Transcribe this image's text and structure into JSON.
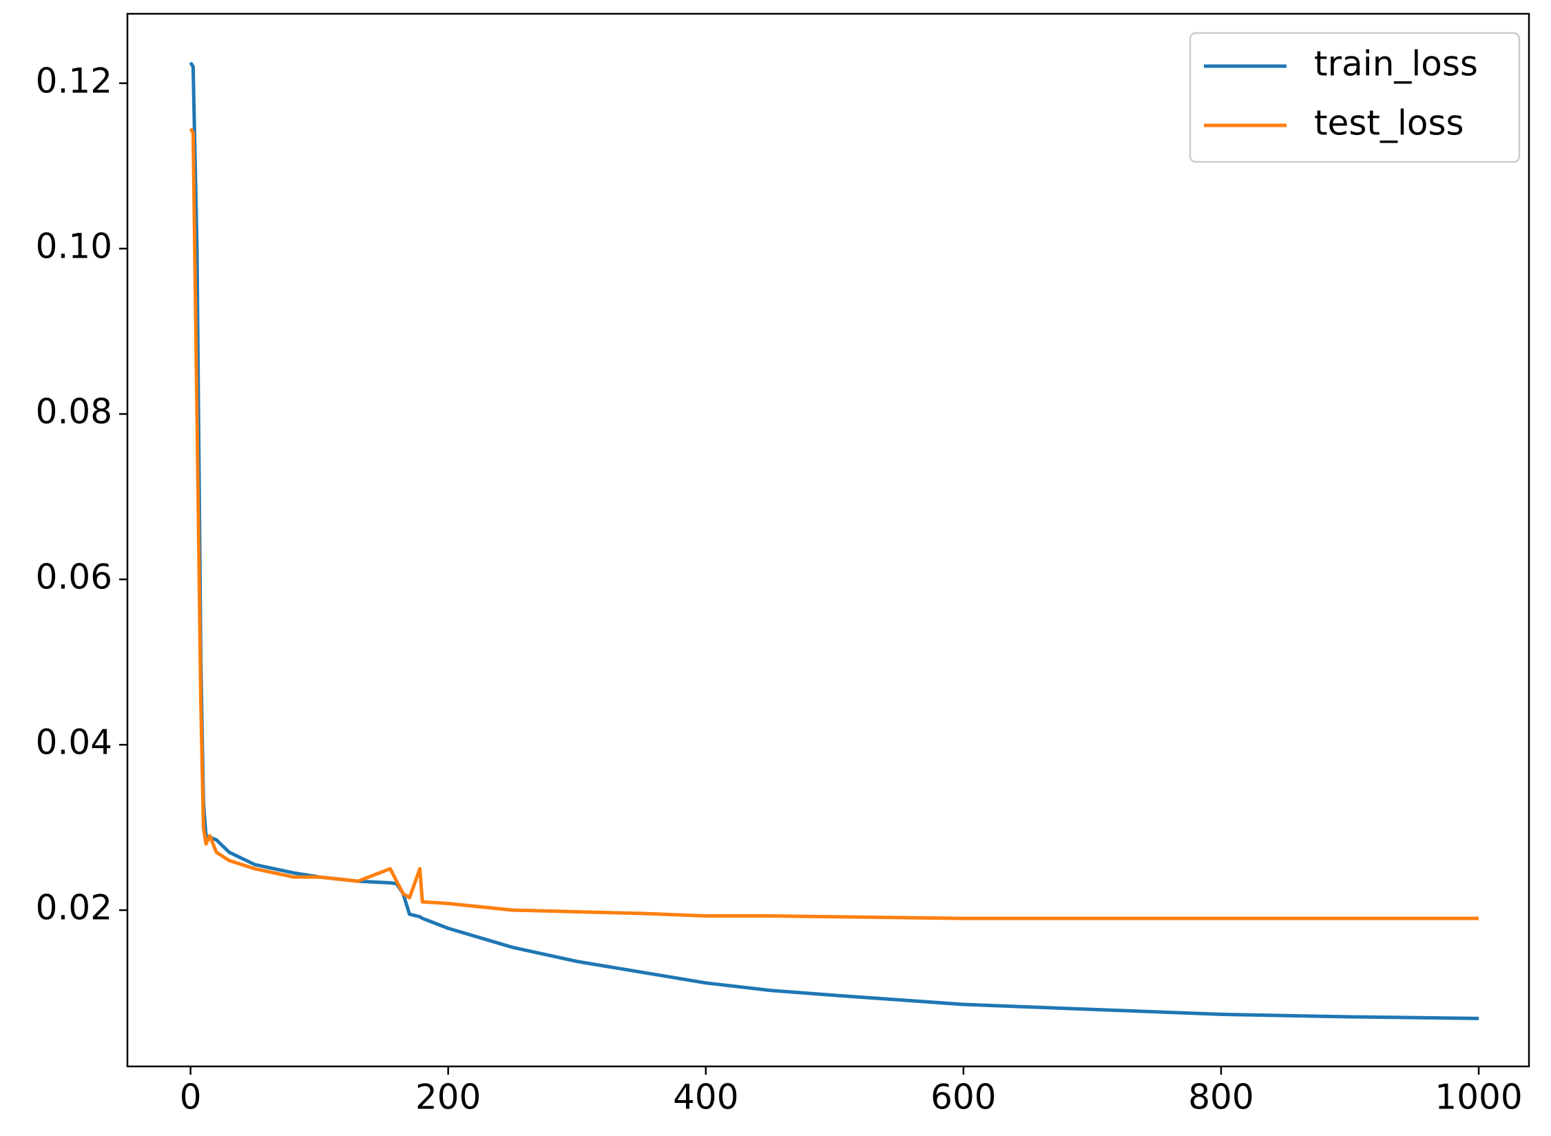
{
  "chart_data": {
    "type": "line",
    "x": [
      0,
      2,
      5,
      8,
      10,
      12,
      15,
      20,
      30,
      50,
      80,
      100,
      130,
      155,
      160,
      165,
      170,
      178,
      180,
      200,
      250,
      300,
      350,
      400,
      450,
      500,
      600,
      700,
      800,
      900,
      1000
    ],
    "series": [
      {
        "name": "train_loss",
        "color": "#1f77b4",
        "values": [
          0.1225,
          0.122,
          0.1,
          0.05,
          0.033,
          0.029,
          0.0288,
          0.0285,
          0.027,
          0.0255,
          0.0245,
          0.024,
          0.0235,
          0.0233,
          0.0232,
          0.022,
          0.0195,
          0.0192,
          0.019,
          0.0178,
          0.0155,
          0.0138,
          0.0125,
          0.0112,
          0.0103,
          0.0097,
          0.0086,
          0.008,
          0.0074,
          0.0071,
          0.0069
        ]
      },
      {
        "name": "test_loss",
        "color": "#ff7f0e",
        "values": [
          0.1145,
          0.114,
          0.08,
          0.045,
          0.03,
          0.028,
          0.029,
          0.027,
          0.026,
          0.025,
          0.024,
          0.024,
          0.0235,
          0.025,
          0.0235,
          0.022,
          0.0215,
          0.025,
          0.021,
          0.0208,
          0.02,
          0.0198,
          0.0196,
          0.0193,
          0.0193,
          0.0192,
          0.019,
          0.019,
          0.019,
          0.019,
          0.019
        ]
      }
    ],
    "xlim": [
      -49,
      1039
    ],
    "xticks": [
      0,
      200,
      400,
      600,
      800,
      1000
    ],
    "ylim": [
      0.0011,
      0.1284
    ],
    "yticks": [
      0.02,
      0.04,
      0.06,
      0.08,
      {
        "value": 0.1,
        "label": "0.10"
      },
      0.12
    ],
    "legend": "upper right"
  }
}
